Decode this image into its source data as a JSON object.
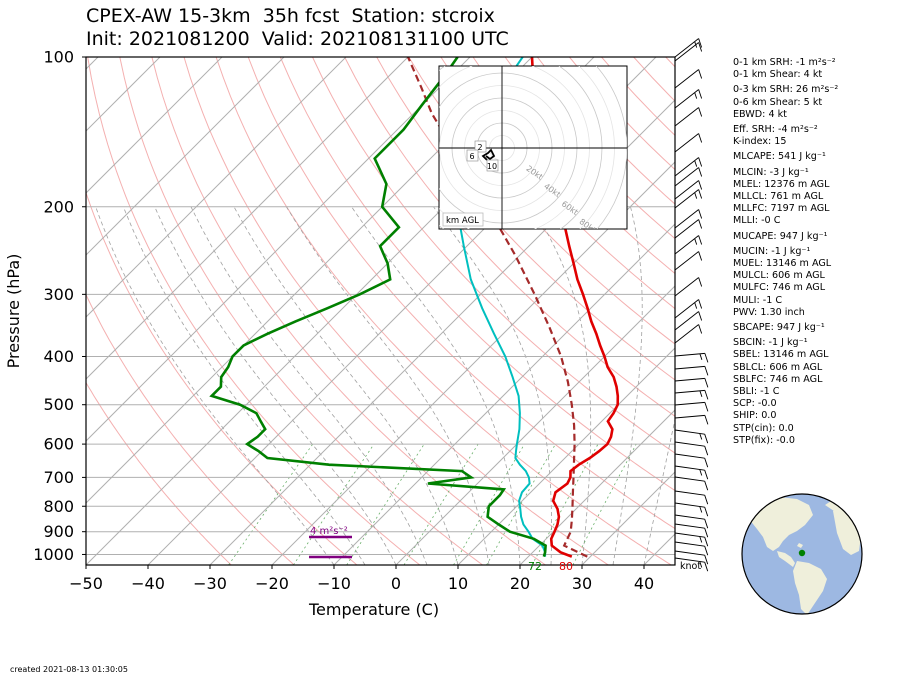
{
  "header": {
    "title_line1": "CPEX-AW 15-3km  35h fcst  Station: stcroix",
    "title_line2": "Init: 2021081200  Valid: 2021081311 00 UTC"
  },
  "chart_data": {
    "type": "skew-t log-p",
    "xlabel": "Temperature (C)",
    "ylabel": "Pressure (hPa)",
    "xlim": [
      -50,
      45
    ],
    "ylim": [
      1050,
      100
    ],
    "x_ticks": [
      "−50",
      "−40",
      "−30",
      "−20",
      "−10",
      "0",
      "10",
      "20",
      "30",
      "40"
    ],
    "y_ticks": [
      "100",
      "200",
      "300",
      "400",
      "500",
      "600",
      "700",
      "800",
      "900",
      "1000"
    ],
    "colors": {
      "temperature": "#e00000",
      "dewpoint": "#008000",
      "wetbulb": "#00bfbf",
      "parcel": "#a52a2a",
      "srh": "#800080",
      "grid": "#b0b0b0"
    },
    "temperature": [
      [
        1010,
        27
      ],
      [
        990,
        24.5
      ],
      [
        960,
        22
      ],
      [
        930,
        20.8
      ],
      [
        900,
        20.2
      ],
      [
        870,
        19.5
      ],
      [
        840,
        18.5
      ],
      [
        810,
        17
      ],
      [
        780,
        15
      ],
      [
        750,
        14
      ],
      [
        720,
        14.5
      ],
      [
        700,
        14
      ],
      [
        680,
        13
      ],
      [
        660,
        13.3
      ],
      [
        640,
        14
      ],
      [
        620,
        14.4
      ],
      [
        600,
        14.6
      ],
      [
        580,
        14
      ],
      [
        560,
        13
      ],
      [
        540,
        11
      ],
      [
        520,
        10.6
      ],
      [
        500,
        9.9
      ],
      [
        480,
        8.5
      ],
      [
        460,
        6.8
      ],
      [
        440,
        4.8
      ],
      [
        420,
        2.2
      ],
      [
        400,
        0
      ],
      [
        380,
        -2.5
      ],
      [
        360,
        -5
      ],
      [
        340,
        -7.8
      ],
      [
        320,
        -10.5
      ],
      [
        300,
        -13.5
      ],
      [
        280,
        -16.8
      ],
      [
        260,
        -20
      ],
      [
        240,
        -23.5
      ],
      [
        220,
        -27.2
      ],
      [
        200,
        -31.3
      ],
      [
        180,
        -35.8
      ],
      [
        160,
        -40.5
      ],
      [
        140,
        -46
      ],
      [
        120,
        -52.5
      ],
      [
        110,
        -56.5
      ],
      [
        100,
        -60
      ]
    ],
    "dewpoint": [
      [
        1010,
        22.5
      ],
      [
        990,
        22
      ],
      [
        960,
        21
      ],
      [
        930,
        18
      ],
      [
        900,
        13
      ],
      [
        870,
        10
      ],
      [
        840,
        7
      ],
      [
        800,
        5.5
      ],
      [
        760,
        5.5
      ],
      [
        740,
        5.2
      ],
      [
        720,
        -8
      ],
      [
        700,
        -2
      ],
      [
        680,
        -4.5
      ],
      [
        660,
        -27
      ],
      [
        640,
        -38
      ],
      [
        620,
        -40.5
      ],
      [
        600,
        -43.5
      ],
      [
        580,
        -43
      ],
      [
        560,
        -43
      ],
      [
        540,
        -45
      ],
      [
        520,
        -47
      ],
      [
        500,
        -51
      ],
      [
        480,
        -57
      ],
      [
        460,
        -57
      ],
      [
        440,
        -58.5
      ],
      [
        420,
        -59
      ],
      [
        400,
        -60
      ],
      [
        380,
        -60
      ],
      [
        360,
        -58
      ],
      [
        340,
        -55.5
      ],
      [
        320,
        -52.5
      ],
      [
        300,
        -49.5
      ],
      [
        280,
        -47
      ],
      [
        260,
        -50
      ],
      [
        240,
        -54
      ],
      [
        220,
        -54
      ],
      [
        200,
        -60
      ],
      [
        180,
        -63
      ],
      [
        160,
        -69
      ],
      [
        140,
        -69
      ],
      [
        125,
        -70
      ],
      [
        110,
        -71
      ],
      [
        100,
        -72
      ]
    ],
    "wetbulb": [
      [
        1010,
        22.7
      ],
      [
        990,
        22
      ],
      [
        960,
        20.5
      ],
      [
        930,
        17.8
      ],
      [
        900,
        16
      ],
      [
        870,
        14
      ],
      [
        840,
        12.4
      ],
      [
        810,
        11
      ],
      [
        780,
        9.5
      ],
      [
        750,
        8.6
      ],
      [
        720,
        8.4
      ],
      [
        700,
        7.3
      ],
      [
        680,
        5.8
      ],
      [
        660,
        3.8
      ],
      [
        640,
        2
      ],
      [
        620,
        1
      ],
      [
        600,
        0
      ],
      [
        560,
        -2
      ],
      [
        520,
        -4.5
      ],
      [
        480,
        -7.5
      ],
      [
        440,
        -11.5
      ],
      [
        400,
        -16
      ],
      [
        360,
        -21.5
      ],
      [
        320,
        -27.5
      ],
      [
        280,
        -34
      ],
      [
        240,
        -40.5
      ],
      [
        200,
        -48
      ],
      [
        170,
        -53.5
      ],
      [
        150,
        -56.5
      ],
      [
        130,
        -58.5
      ],
      [
        115,
        -60
      ],
      [
        100,
        -61.5
      ]
    ],
    "parcel": [
      [
        1010,
        29.5
      ],
      [
        960,
        24
      ],
      [
        900,
        22.8
      ],
      [
        850,
        21
      ],
      [
        800,
        19
      ],
      [
        750,
        16.8
      ],
      [
        700,
        14.5
      ],
      [
        650,
        12
      ],
      [
        600,
        9.3
      ],
      [
        550,
        6.2
      ],
      [
        500,
        2.5
      ],
      [
        450,
        -1.8
      ],
      [
        400,
        -7
      ],
      [
        350,
        -13.5
      ],
      [
        300,
        -21.3
      ],
      [
        250,
        -30.8
      ],
      [
        200,
        -43
      ],
      [
        170,
        -52
      ],
      [
        150,
        -59
      ],
      [
        130,
        -67
      ],
      [
        115,
        -73
      ],
      [
        100,
        -80
      ]
    ],
    "surface_labels": {
      "dewpoint": "72",
      "temperature": "80"
    },
    "srh_label": "4 m²s⁻²",
    "wind_unit": "knot",
    "hodograph": {
      "rings": [
        "20kt",
        "40kt",
        "60kt",
        "80kt"
      ],
      "height_labels": [
        "2",
        "6",
        "10"
      ],
      "label": "km AGL"
    },
    "stats": {
      "srh_1km": "0-1 km SRH: -1 m²s⁻²",
      "shear_1km": "0-1 km Shear: 4 kt",
      "srh_3km": "0-3 km SRH: 26 m²s⁻²",
      "shear_6km": "0-6 km Shear: 5 kt",
      "ebwd": "EBWD: 4 kt",
      "eff_srh": "Eff. SRH: -4 m²s⁻²",
      "k_index": "K-index: 15",
      "mlcape": "MLCAPE: 541 J kg⁻¹",
      "mlcin": "MLCIN: -3 J kg⁻¹",
      "mlel": "MLEL: 12376 m AGL",
      "mllcl": "MLLCL: 761 m AGL",
      "mllfc": "MLLFC: 7197 m AGL",
      "mlli": "MLLI: -0 C",
      "mucape": "MUCAPE: 947 J kg⁻¹",
      "mucin": "MUCIN: -1 J kg⁻¹",
      "muel": "MUEL: 13146 m AGL",
      "mulcl": "MULCL: 606 m AGL",
      "mulfc": "MULFC: 746 m AGL",
      "muli": "MULI: -1 C",
      "pwv": "PWV: 1.30 inch",
      "sbcape": "SBCAPE: 947 J kg⁻¹",
      "sbcin": "SBCIN: -1 J kg⁻¹",
      "sbel": "SBEL: 13146 m AGL",
      "sblcl": "SBLCL: 606 m AGL",
      "sblfc": "SBLFC: 746 m AGL",
      "sbli": "SBLI: -1 C",
      "scp": "SCP: -0.0",
      "ship": "SHIP: 0.0",
      "stp_cin": "STP(cin): 0.0",
      "stp_fix": "STP(fix): -0.0"
    }
  },
  "footer": {
    "created": "created 2021-08-13 01:30:05"
  }
}
